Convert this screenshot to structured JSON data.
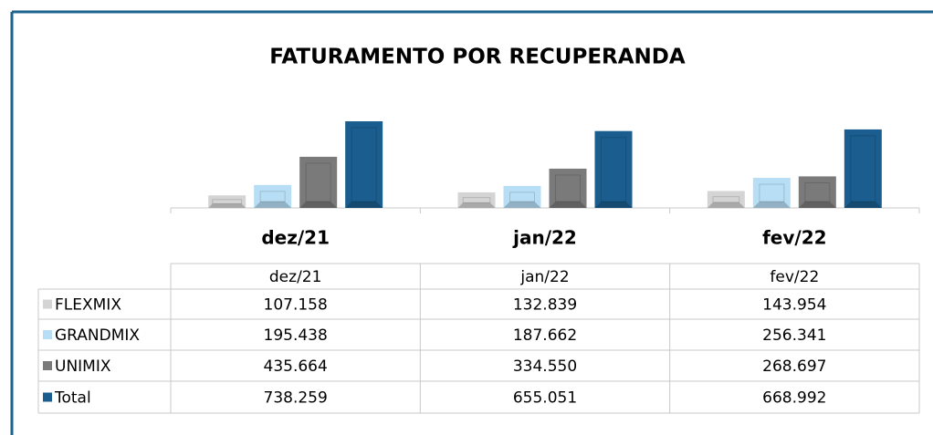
{
  "chart_data": {
    "type": "bar",
    "title": "FATURAMENTO POR RECUPERANDA",
    "categories": [
      "dez/21",
      "jan/22",
      "fev/22"
    ],
    "series": [
      {
        "name": "FLEXMIX",
        "color": "#d4d4d4",
        "values": [
          107158,
          132839,
          143954
        ],
        "value_labels": [
          "107.158",
          "132.839",
          "143.954"
        ]
      },
      {
        "name": "GRANDMIX",
        "color": "#b7def5",
        "values": [
          195438,
          187662,
          256341
        ],
        "value_labels": [
          "195.438",
          "187.662",
          "256.341"
        ]
      },
      {
        "name": "UNIMIX",
        "color": "#7a7a7a",
        "values": [
          435664,
          334550,
          268697
        ],
        "value_labels": [
          "435.664",
          "334.550",
          "268.697"
        ]
      },
      {
        "name": "Total",
        "color": "#1b5d8e",
        "values": [
          738259,
          655051,
          668992
        ],
        "value_labels": [
          "738.259",
          "655.051",
          "668.992"
        ]
      }
    ]
  }
}
